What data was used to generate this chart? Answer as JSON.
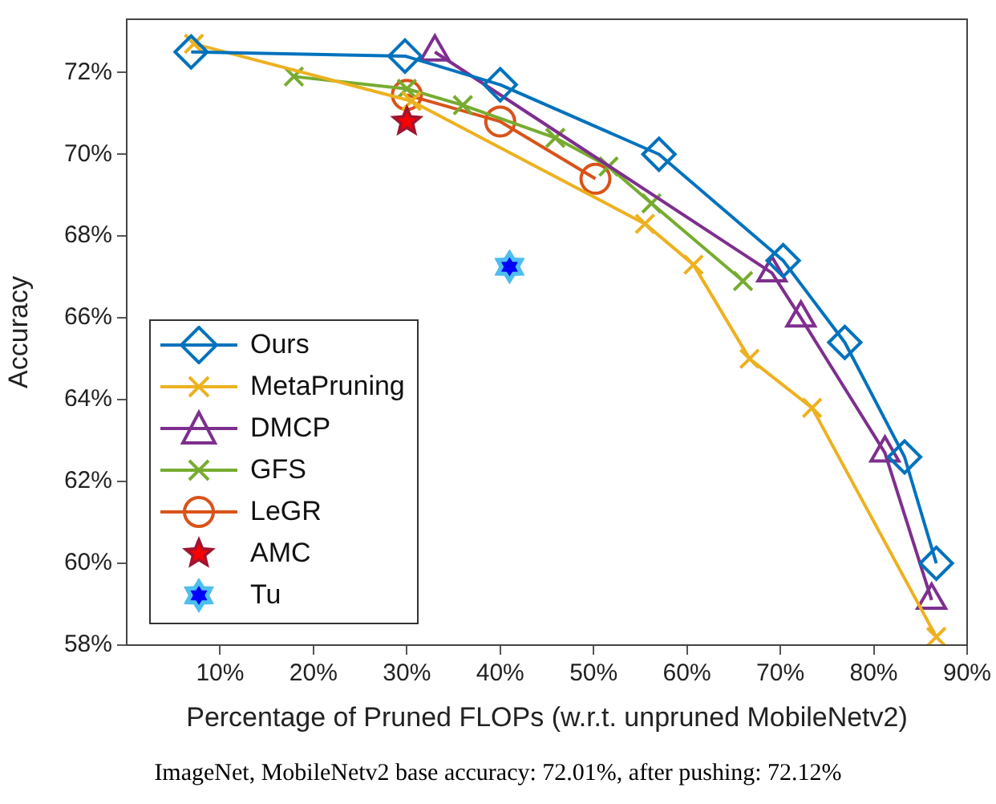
{
  "chart_data": {
    "type": "line",
    "xlabel": "Percentage of Pruned FLOPs (w.r.t. unpruned MobileNetv2)",
    "ylabel": "Accuracy",
    "annotations": [
      "ImageNet, MobileNetv2 base accuracy: 72.01%, after pushing: 72.12%"
    ],
    "xlim": [
      0,
      90
    ],
    "ylim": [
      58,
      73.3
    ],
    "xticks": [
      {
        "value": 10,
        "label": "10%"
      },
      {
        "value": 20,
        "label": "20%"
      },
      {
        "value": 30,
        "label": "30%"
      },
      {
        "value": 40,
        "label": "40%"
      },
      {
        "value": 50,
        "label": "50%"
      },
      {
        "value": 60,
        "label": "60%"
      },
      {
        "value": 70,
        "label": "70%"
      },
      {
        "value": 80,
        "label": "80%"
      },
      {
        "value": 90,
        "label": "90%"
      }
    ],
    "yticks": [
      {
        "value": 58,
        "label": "58%"
      },
      {
        "value": 60,
        "label": "60%"
      },
      {
        "value": 62,
        "label": "62%"
      },
      {
        "value": 64,
        "label": "64%"
      },
      {
        "value": 66,
        "label": "66%"
      },
      {
        "value": 68,
        "label": "68%"
      },
      {
        "value": 70,
        "label": "70%"
      },
      {
        "value": 72,
        "label": "72%"
      }
    ],
    "grid": false,
    "legend": "bottom left",
    "line_style": "solid",
    "series": [
      {
        "name": "Ours",
        "color": "#0072bd",
        "marker": "diamond",
        "x": [
          6.9,
          29.8,
          40,
          57,
          70.3,
          76.9,
          83.3,
          86.7
        ],
        "values": [
          72.5,
          72.4,
          71.7,
          70.0,
          67.4,
          65.4,
          62.6,
          60.0
        ]
      },
      {
        "name": "MetaPruning",
        "color": "#edb120",
        "marker": "cross",
        "x": [
          7.2,
          30.5,
          55.5,
          60.7,
          66.7,
          73.4,
          86.7
        ],
        "values": [
          72.7,
          71.3,
          68.3,
          67.3,
          65.0,
          63.8,
          58.2
        ]
      },
      {
        "name": "DMCP",
        "color": "#7e2f8e",
        "marker": "triangle",
        "x": [
          33,
          69.1,
          72.2,
          81.2,
          86.2
        ],
        "values": [
          72.5,
          67.1,
          66.0,
          62.7,
          59.1
        ]
      },
      {
        "name": "GFS",
        "color": "#77ac30",
        "marker": "cross",
        "x": [
          17.9,
          30,
          36,
          45.9,
          51.6,
          56.2,
          66
        ],
        "values": [
          71.9,
          71.6,
          71.2,
          70.4,
          69.7,
          68.8,
          66.9
        ]
      },
      {
        "name": "LeGR",
        "color": "#d95319",
        "marker": "circle",
        "x": [
          30,
          40,
          50.2
        ],
        "values": [
          71.45,
          70.8,
          69.4
        ]
      },
      {
        "name": "AMC",
        "type": "scatter",
        "color": "#a2142f",
        "x": [
          30
        ],
        "values": [
          70.8
        ]
      },
      {
        "name": "Tu",
        "type": "scatter",
        "color": "#4dbeee",
        "x": [
          41
        ],
        "values": [
          67.25
        ]
      }
    ]
  }
}
